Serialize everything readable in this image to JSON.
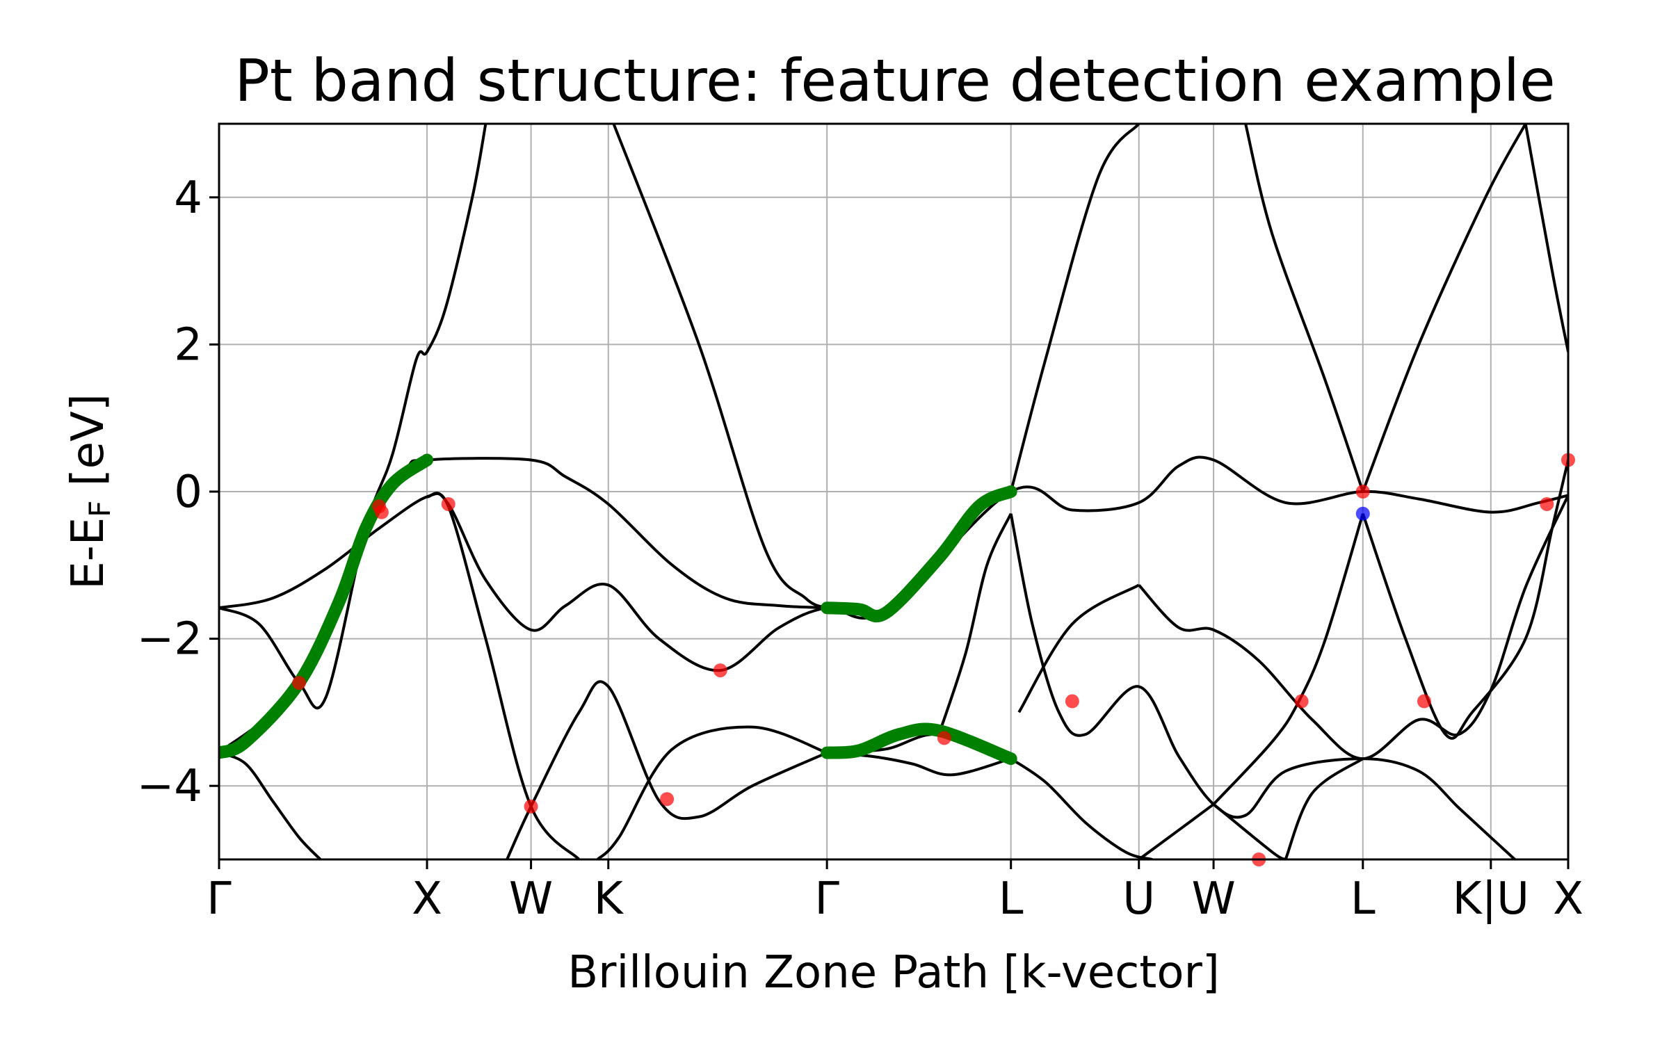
{
  "chart_data": {
    "type": "line",
    "title": "Pt band structure: feature detection example",
    "xlabel": "Brillouin Zone Path [k-vector]",
    "ylabel": "E-E",
    "ylabel_subscript": "F",
    "ylabel_suffix": " [eV]",
    "ylim": [
      -5,
      5
    ],
    "xlim": [
      0,
      5.06
    ],
    "grid": true,
    "yticks": [
      {
        "value": 4,
        "label": "4"
      },
      {
        "value": 2,
        "label": "2"
      },
      {
        "value": 0,
        "label": "0"
      },
      {
        "value": -2,
        "label": "−2"
      },
      {
        "value": -4,
        "label": "−4"
      }
    ],
    "xticks": [
      {
        "value": 0.0,
        "label": "Γ"
      },
      {
        "value": 0.78,
        "label": "X"
      },
      {
        "value": 1.17,
        "label": "W"
      },
      {
        "value": 1.46,
        "label": "K"
      },
      {
        "value": 2.28,
        "label": "Γ"
      },
      {
        "value": 2.97,
        "label": "L"
      },
      {
        "value": 3.45,
        "label": "U"
      },
      {
        "value": 3.73,
        "label": "W"
      },
      {
        "value": 4.29,
        "label": "L"
      },
      {
        "value": 4.77,
        "label": "K|U"
      },
      {
        "value": 5.06,
        "label": "X"
      }
    ],
    "colors": {
      "band": "#000000",
      "highlight": "#008000",
      "crossing": "#ff0000",
      "degenerate": "#0000ff",
      "grid": "#b0b0b0"
    },
    "series": [
      {
        "values": [
          [
            0,
            -1.58
          ],
          [
            0.2,
            -1.45
          ],
          [
            0.4,
            -1.05
          ],
          [
            0.6,
            -0.5
          ],
          [
            0.78,
            -0.07
          ],
          [
            0.86,
            -0.17
          ],
          [
            1.0,
            -1.2
          ],
          [
            1.17,
            -1.88
          ],
          [
            1.3,
            -1.55
          ],
          [
            1.46,
            -1.27
          ],
          [
            1.65,
            -2.0
          ],
          [
            1.88,
            -2.43
          ],
          [
            2.1,
            -1.85
          ],
          [
            2.28,
            -1.58
          ],
          [
            2.5,
            -1.62
          ],
          [
            2.97,
            0.0
          ],
          [
            3.2,
            -0.25
          ],
          [
            3.45,
            -0.15
          ],
          [
            3.6,
            0.35
          ],
          [
            3.73,
            0.43
          ],
          [
            4.0,
            -0.15
          ],
          [
            4.29,
            0.0
          ],
          [
            4.5,
            -0.1
          ],
          [
            4.77,
            -0.28
          ],
          [
            4.95,
            -0.15
          ],
          [
            5.06,
            -0.05
          ]
        ]
      },
      {
        "values": [
          [
            0,
            -1.58
          ],
          [
            0.15,
            -1.8
          ],
          [
            0.3,
            -2.6
          ],
          [
            0.4,
            -2.8
          ],
          [
            0.55,
            -0.5
          ],
          [
            0.65,
            0.5
          ],
          [
            0.74,
            1.8
          ],
          [
            0.78,
            1.9
          ],
          [
            0.85,
            2.5
          ],
          [
            0.95,
            4.0
          ],
          [
            1.0,
            5.0
          ]
        ]
      },
      {
        "values": [
          [
            0,
            -3.55
          ],
          [
            0.3,
            -2.6
          ],
          [
            0.55,
            -0.5
          ],
          [
            0.7,
            0.3
          ],
          [
            0.78,
            0.43
          ],
          [
            1.17,
            0.43
          ],
          [
            1.3,
            0.2
          ],
          [
            1.46,
            -0.17
          ],
          [
            1.7,
            -1.0
          ],
          [
            1.9,
            -1.45
          ],
          [
            2.1,
            -1.55
          ],
          [
            2.28,
            -1.58
          ]
        ]
      },
      {
        "values": [
          [
            0,
            -3.55
          ],
          [
            0.1,
            -3.7
          ],
          [
            0.2,
            -4.2
          ],
          [
            0.3,
            -4.7
          ],
          [
            0.38,
            -5.0
          ]
        ]
      },
      {
        "values": [
          [
            0.78,
            -0.07
          ],
          [
            0.86,
            -0.2
          ],
          [
            1.0,
            -2.0
          ],
          [
            1.17,
            -4.28
          ],
          [
            1.35,
            -5.0
          ]
        ]
      },
      {
        "values": [
          [
            1.08,
            -5.0
          ],
          [
            1.17,
            -4.28
          ],
          [
            1.35,
            -3.0
          ],
          [
            1.46,
            -2.65
          ],
          [
            1.65,
            -4.2
          ],
          [
            1.8,
            -4.42
          ],
          [
            2.0,
            -4.0
          ],
          [
            2.28,
            -3.55
          ]
        ]
      },
      {
        "values": [
          [
            1.42,
            -5.0
          ],
          [
            1.5,
            -4.7
          ],
          [
            1.7,
            -3.5
          ],
          [
            2.0,
            -3.2
          ],
          [
            2.28,
            -3.55
          ]
        ]
      },
      {
        "values": [
          [
            1.48,
            5.0
          ],
          [
            1.8,
            2.0
          ],
          [
            2.05,
            -0.8
          ],
          [
            2.2,
            -1.45
          ],
          [
            2.28,
            -1.58
          ]
        ]
      },
      {
        "values": [
          [
            2.28,
            -3.55
          ],
          [
            2.5,
            -3.5
          ],
          [
            2.7,
            -3.3
          ],
          [
            2.97,
            -3.63
          ]
        ]
      },
      {
        "values": [
          [
            2.28,
            -3.55
          ],
          [
            2.45,
            -3.6
          ],
          [
            2.6,
            -3.7
          ],
          [
            2.75,
            -3.85
          ],
          [
            2.97,
            -3.63
          ]
        ]
      },
      {
        "values": [
          [
            2.97,
            -3.63
          ],
          [
            3.1,
            -3.95
          ],
          [
            3.25,
            -4.5
          ],
          [
            3.4,
            -4.9
          ],
          [
            3.5,
            -5.0
          ]
        ]
      },
      {
        "values": [
          [
            2.97,
            -0.3
          ],
          [
            3.05,
            -1.8
          ],
          [
            3.15,
            -3.0
          ],
          [
            3.25,
            -3.3
          ],
          [
            3.45,
            -2.65
          ],
          [
            3.6,
            -3.6
          ],
          [
            3.73,
            -4.25
          ],
          [
            3.85,
            -4.4
          ],
          [
            4.0,
            -3.8
          ],
          [
            4.29,
            -3.63
          ],
          [
            4.5,
            -3.8
          ],
          [
            4.65,
            -4.3
          ],
          [
            4.77,
            -4.7
          ],
          [
            4.86,
            -5.0
          ]
        ]
      },
      {
        "values": [
          [
            2.97,
            -0.3
          ],
          [
            2.88,
            -1.0
          ],
          [
            2.8,
            -2.2
          ],
          [
            2.7,
            -3.3
          ]
        ]
      },
      {
        "values": [
          [
            2.97,
            0.0
          ],
          [
            3.1,
            1.8
          ],
          [
            3.3,
            4.3
          ],
          [
            3.45,
            5.0
          ]
        ]
      },
      {
        "values": [
          [
            3.45,
            -5.0
          ],
          [
            3.6,
            -4.6
          ],
          [
            3.73,
            -4.25
          ]
        ]
      },
      {
        "values": [
          [
            3.45,
            -1.27
          ],
          [
            3.6,
            -1.85
          ],
          [
            3.73,
            -1.88
          ],
          [
            3.9,
            -2.3
          ],
          [
            4.1,
            -3.1
          ],
          [
            4.29,
            -3.63
          ],
          [
            4.5,
            -3.1
          ],
          [
            4.65,
            -3.3
          ],
          [
            4.77,
            -2.7
          ],
          [
            4.9,
            -1.3
          ],
          [
            5.06,
            -0.05
          ]
        ]
      },
      {
        "values": [
          [
            3.0,
            -3.0
          ],
          [
            3.2,
            -1.8
          ],
          [
            3.45,
            -1.27
          ]
        ]
      },
      {
        "values": [
          [
            3.73,
            -4.25
          ],
          [
            3.95,
            -4.9
          ],
          [
            4.0,
            -5.0
          ]
        ]
      },
      {
        "values": [
          [
            4.29,
            -3.63
          ],
          [
            4.1,
            -4.1
          ],
          [
            4.0,
            -5.0
          ]
        ]
      },
      {
        "values": [
          [
            4.29,
            -0.3
          ],
          [
            4.15,
            -2.0
          ],
          [
            4.05,
            -2.85
          ],
          [
            3.95,
            -3.4
          ],
          [
            3.73,
            -4.25
          ]
        ]
      },
      {
        "values": [
          [
            4.29,
            -0.3
          ],
          [
            4.45,
            -2.0
          ],
          [
            4.6,
            -3.3
          ],
          [
            4.7,
            -3.0
          ],
          [
            4.9,
            -2.0
          ],
          [
            5.0,
            -0.5
          ],
          [
            5.06,
            0.43
          ]
        ]
      },
      {
        "values": [
          [
            4.29,
            0.0
          ],
          [
            4.15,
            1.5
          ],
          [
            3.95,
            3.5
          ],
          [
            3.85,
            5.0
          ]
        ]
      },
      {
        "values": [
          [
            4.29,
            0.0
          ],
          [
            4.5,
            2.0
          ],
          [
            4.75,
            4.0
          ],
          [
            4.9,
            5.0
          ]
        ]
      },
      {
        "values": [
          [
            4.9,
            5.0
          ],
          [
            5.0,
            3.0
          ],
          [
            5.06,
            1.9
          ]
        ]
      }
    ],
    "highlight_segments": [
      {
        "values": [
          [
            0,
            -3.55
          ],
          [
            0.1,
            -3.4
          ],
          [
            0.3,
            -2.6
          ],
          [
            0.45,
            -1.5
          ],
          [
            0.55,
            -0.5
          ],
          [
            0.65,
            0.1
          ],
          [
            0.78,
            0.43
          ]
        ]
      },
      {
        "values": [
          [
            2.28,
            -1.58
          ],
          [
            2.4,
            -1.6
          ],
          [
            2.5,
            -1.65
          ],
          [
            2.7,
            -0.9
          ],
          [
            2.85,
            -0.2
          ],
          [
            2.97,
            0.0
          ]
        ]
      },
      {
        "values": [
          [
            2.28,
            -3.55
          ],
          [
            2.4,
            -3.52
          ],
          [
            2.55,
            -3.3
          ],
          [
            2.7,
            -3.25
          ],
          [
            2.97,
            -3.63
          ]
        ]
      }
    ],
    "points": [
      {
        "x": 0.3,
        "y": -2.6,
        "color": "crossing"
      },
      {
        "x": 0.6,
        "y": -0.2,
        "color": "crossing"
      },
      {
        "x": 0.61,
        "y": -0.28,
        "color": "crossing"
      },
      {
        "x": 0.86,
        "y": -0.17,
        "color": "crossing"
      },
      {
        "x": 1.17,
        "y": -4.28,
        "color": "crossing"
      },
      {
        "x": 1.68,
        "y": -4.18,
        "color": "crossing"
      },
      {
        "x": 1.88,
        "y": -2.43,
        "color": "crossing"
      },
      {
        "x": 2.72,
        "y": -3.35,
        "color": "crossing"
      },
      {
        "x": 3.2,
        "y": -2.85,
        "color": "crossing"
      },
      {
        "x": 3.9,
        "y": -5.0,
        "color": "crossing"
      },
      {
        "x": 4.06,
        "y": -2.85,
        "color": "crossing"
      },
      {
        "x": 4.29,
        "y": 0.0,
        "color": "crossing"
      },
      {
        "x": 4.29,
        "y": -0.3,
        "color": "degenerate"
      },
      {
        "x": 4.52,
        "y": -2.85,
        "color": "crossing"
      },
      {
        "x": 4.98,
        "y": -0.17,
        "color": "crossing"
      },
      {
        "x": 5.06,
        "y": 0.43,
        "color": "crossing"
      }
    ]
  }
}
